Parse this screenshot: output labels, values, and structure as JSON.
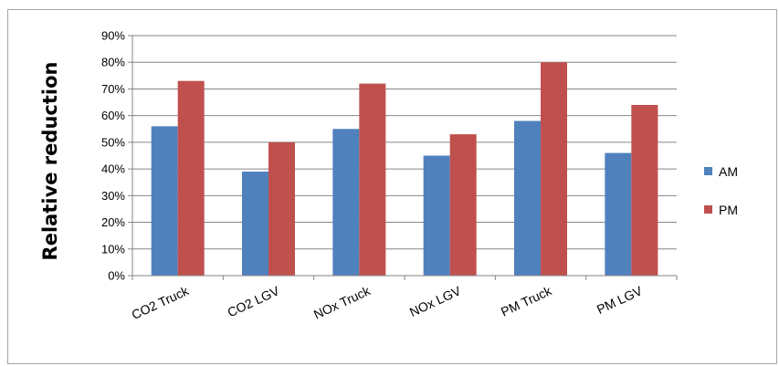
{
  "chart_data": {
    "type": "bar",
    "title": "",
    "xlabel": "",
    "ylabel": "Relative reduction",
    "categories": [
      "CO2 Truck",
      "CO2 LGV",
      "NOx Truck",
      "NOx LGV",
      "PM Truck",
      "PM LGV"
    ],
    "series": [
      {
        "name": "AM",
        "color": "#4f81bd",
        "values": [
          0.56,
          0.39,
          0.55,
          0.45,
          0.58,
          0.46
        ]
      },
      {
        "name": "PM",
        "color": "#c0504d",
        "values": [
          0.73,
          0.5,
          0.72,
          0.53,
          0.8,
          0.64
        ]
      }
    ],
    "ylim": [
      0,
      0.9
    ],
    "yticks": [
      "0%",
      "10%",
      "20%",
      "30%",
      "40%",
      "50%",
      "60%",
      "70%",
      "80%",
      "90%"
    ],
    "grid": true,
    "legend": "right"
  }
}
